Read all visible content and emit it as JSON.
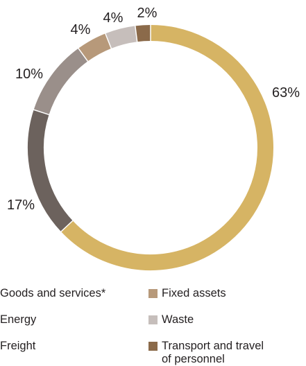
{
  "chart_data": {
    "type": "pie",
    "donut": true,
    "start": "top, clockwise",
    "slices": [
      {
        "label": "Goods and services*",
        "value": 63,
        "display": "63%",
        "color": "#d6b464"
      },
      {
        "label": "Freight",
        "value": 17,
        "display": "17%",
        "color": "#6c625d"
      },
      {
        "label": "Energy",
        "value": 10,
        "display": "10%",
        "color": "#9a8f8a"
      },
      {
        "label": "Fixed assets",
        "value": 4,
        "display": "4%",
        "color": "#b7997a"
      },
      {
        "label": "Waste",
        "value": 4,
        "display": "4%",
        "color": "#c6bebb"
      },
      {
        "label": "Transport and travel of personnel",
        "value": 2,
        "display": "2%",
        "color": "#8b6a4a"
      }
    ]
  },
  "legend": {
    "col1": [
      "Goods and services*",
      "Energy",
      "Freight"
    ],
    "col2": [
      "Fixed assets",
      "Waste",
      "Transport and travel",
      "of personnel"
    ]
  },
  "colors": {
    "fixed_assets": "#b7997a",
    "waste": "#c6bebb",
    "transport": "#8b6a4a"
  }
}
